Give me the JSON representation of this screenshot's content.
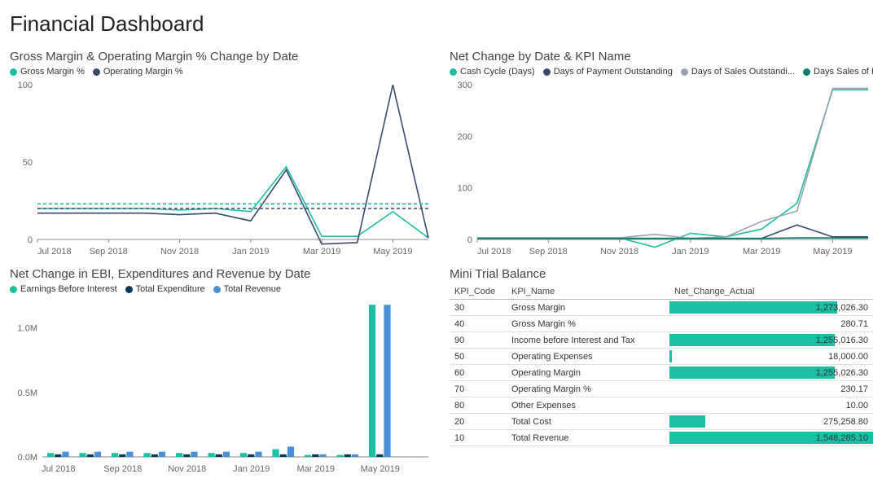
{
  "title": "Financial Dashboard",
  "colors": {
    "teal": "#1cbfa3",
    "navy": "#3a4a6b",
    "grey": "#9aa3ad",
    "darkteal": "#0a7d6b",
    "blue": "#4a90d9",
    "grid": "#cccccc",
    "axis": "#888888",
    "text": "#666666"
  },
  "chart1": {
    "title": "Gross Margin & Operating Margin % Change by Date",
    "legend": [
      {
        "label": "Gross Margin %",
        "color": "#1cbfa3"
      },
      {
        "label": "Operating Margin %",
        "color": "#3a4a6b"
      }
    ],
    "ylim": [
      0,
      100
    ],
    "yticks": [
      0,
      50,
      100
    ],
    "xlabels": [
      "Jul 2018",
      "Sep 2018",
      "Nov 2018",
      "Jan 2019",
      "Mar 2019",
      "May 2019"
    ],
    "x_n": 12,
    "series": [
      {
        "color": "#1cbfa3",
        "dashed": false,
        "values": [
          20,
          20,
          20,
          20,
          19,
          20,
          18,
          47,
          2,
          2,
          18,
          1
        ]
      },
      {
        "color": "#3a4a6b",
        "dashed": false,
        "values": [
          17,
          17,
          17,
          17,
          16,
          17,
          12,
          45,
          -3,
          -2,
          100,
          1
        ]
      },
      {
        "color": "#1cbfa3",
        "dashed": true,
        "values": [
          23,
          23,
          23,
          23,
          23,
          23,
          23,
          23,
          23,
          23,
          23,
          23
        ]
      },
      {
        "color": "#3a4a6b",
        "dashed": true,
        "values": [
          20,
          20,
          20,
          20,
          20,
          20,
          20,
          20,
          20,
          20,
          20,
          20
        ]
      }
    ]
  },
  "chart2": {
    "title": "Net Change by Date & KPI Name",
    "legend": [
      {
        "label": "Cash Cycle (Days)",
        "color": "#1cbfa3"
      },
      {
        "label": "Days of Payment Outstanding",
        "color": "#3a4a6b"
      },
      {
        "label": "Days of Sales Outstandi...",
        "color": "#9aa3ad"
      },
      {
        "label": "Days Sales of Inve...",
        "color": "#0a7d6b"
      }
    ],
    "ylim": [
      0,
      300
    ],
    "yticks": [
      0,
      100,
      200,
      300
    ],
    "xlabels": [
      "Jul 2018",
      "Sep 2018",
      "Nov 2018",
      "Jan 2019",
      "Mar 2019",
      "May 2019"
    ],
    "x_n": 12,
    "series": [
      {
        "color": "#1cbfa3",
        "values": [
          3,
          3,
          3,
          3,
          3,
          -15,
          12,
          5,
          20,
          70,
          290,
          290
        ]
      },
      {
        "color": "#3a4a6b",
        "values": [
          2,
          2,
          2,
          2,
          2,
          2,
          2,
          2,
          2,
          28,
          5,
          5
        ]
      },
      {
        "color": "#9aa3ad",
        "values": [
          3,
          3,
          3,
          3,
          3,
          10,
          2,
          5,
          35,
          55,
          293,
          293
        ]
      },
      {
        "color": "#0a7d6b",
        "values": [
          2,
          2,
          2,
          2,
          2,
          2,
          2,
          2,
          2,
          3,
          3,
          3
        ]
      }
    ]
  },
  "chart3": {
    "title": "Net Change in EBI, Expenditures and Revenue by Date",
    "legend": [
      {
        "label": "Earnings Before Interest",
        "color": "#1cbfa3"
      },
      {
        "label": "Total Expenditure",
        "color": "#0a3a5a"
      },
      {
        "label": "Total Revenue",
        "color": "#4a90d9"
      }
    ],
    "ylim": [
      0,
      1200000
    ],
    "yticks": [
      {
        "v": 0,
        "label": "0.0M"
      },
      {
        "v": 500000,
        "label": "0.5M"
      },
      {
        "v": 1000000,
        "label": "1.0M"
      }
    ],
    "xlabels": [
      "Jul 2018",
      "Sep 2018",
      "Nov 2018",
      "Jan 2019",
      "Mar 2019",
      "May 2019"
    ],
    "x_n": 12,
    "series": [
      {
        "color": "#1cbfa3",
        "values": [
          30000,
          30000,
          30000,
          30000,
          30000,
          30000,
          30000,
          60000,
          15000,
          15000,
          1180000,
          0
        ]
      },
      {
        "color": "#0a3a5a",
        "values": [
          20000,
          20000,
          20000,
          20000,
          20000,
          20000,
          20000,
          20000,
          20000,
          20000,
          20000,
          0
        ]
      },
      {
        "color": "#4a90d9",
        "values": [
          40000,
          40000,
          40000,
          40000,
          40000,
          40000,
          40000,
          80000,
          20000,
          20000,
          1180000,
          0
        ]
      }
    ]
  },
  "table": {
    "title": "Mini Trial Balance",
    "columns": [
      "KPI_Code",
      "KPI_Name",
      "Net_Change_Actual"
    ],
    "max": 1548285.1,
    "bar_color": "#1cbfa3",
    "rows": [
      {
        "code": "30",
        "name": "Gross Margin",
        "value": 1273026.3,
        "display": "1,273,026.30"
      },
      {
        "code": "40",
        "name": "Gross Margin %",
        "value": 280.71,
        "display": "280.71"
      },
      {
        "code": "90",
        "name": "Income before Interest and Tax",
        "value": 1255016.3,
        "display": "1,255,016.30"
      },
      {
        "code": "50",
        "name": "Operating Expenses",
        "value": 18000.0,
        "display": "18,000.00"
      },
      {
        "code": "60",
        "name": "Operating Margin",
        "value": 1255026.3,
        "display": "1,255,026.30"
      },
      {
        "code": "70",
        "name": "Operating Margin %",
        "value": 230.17,
        "display": "230.17"
      },
      {
        "code": "80",
        "name": "Other Expenses",
        "value": 10.0,
        "display": "10.00"
      },
      {
        "code": "20",
        "name": "Total Cost",
        "value": 275258.8,
        "display": "275,258.80"
      },
      {
        "code": "10",
        "name": "Total Revenue",
        "value": 1548285.1,
        "display": "1,548,285.10"
      }
    ]
  }
}
